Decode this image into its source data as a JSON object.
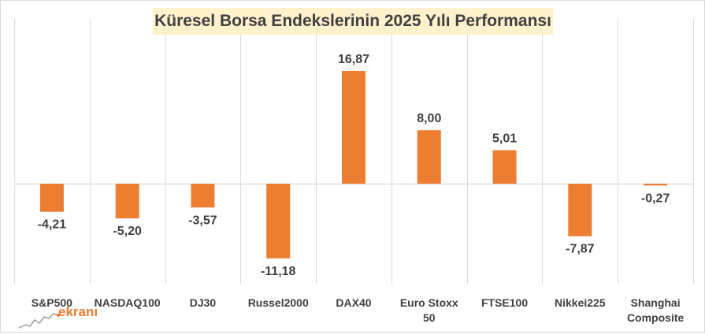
{
  "chart_data": {
    "type": "bar",
    "title": "Küresel Borsa Endekslerinin 2025 Yılı Performansı",
    "categories": [
      [
        "S&P500"
      ],
      [
        "NASDAQ100"
      ],
      [
        "DJ30"
      ],
      [
        "Russel2000"
      ],
      [
        "DAX40"
      ],
      [
        "Euro Stoxx",
        "50"
      ],
      [
        "FTSE100"
      ],
      [
        "Nikkei225"
      ],
      [
        "Shanghai",
        "Composite"
      ]
    ],
    "values": [
      -4.21,
      -5.2,
      -3.57,
      -11.18,
      16.87,
      8.0,
      5.01,
      -7.87,
      -0.27
    ],
    "value_labels": [
      "-4,21",
      "-5,20",
      "-3,57",
      "-11,18",
      "16,87",
      "8,00",
      "5,01",
      "-7,87",
      "-0,27"
    ],
    "ylim": [
      -14.5,
      21
    ],
    "bar_color": "#ed7d31",
    "grid": "vertical category separators",
    "legend": "none"
  },
  "logo": {
    "text": "ekranı",
    "color": "#ed7d31"
  }
}
